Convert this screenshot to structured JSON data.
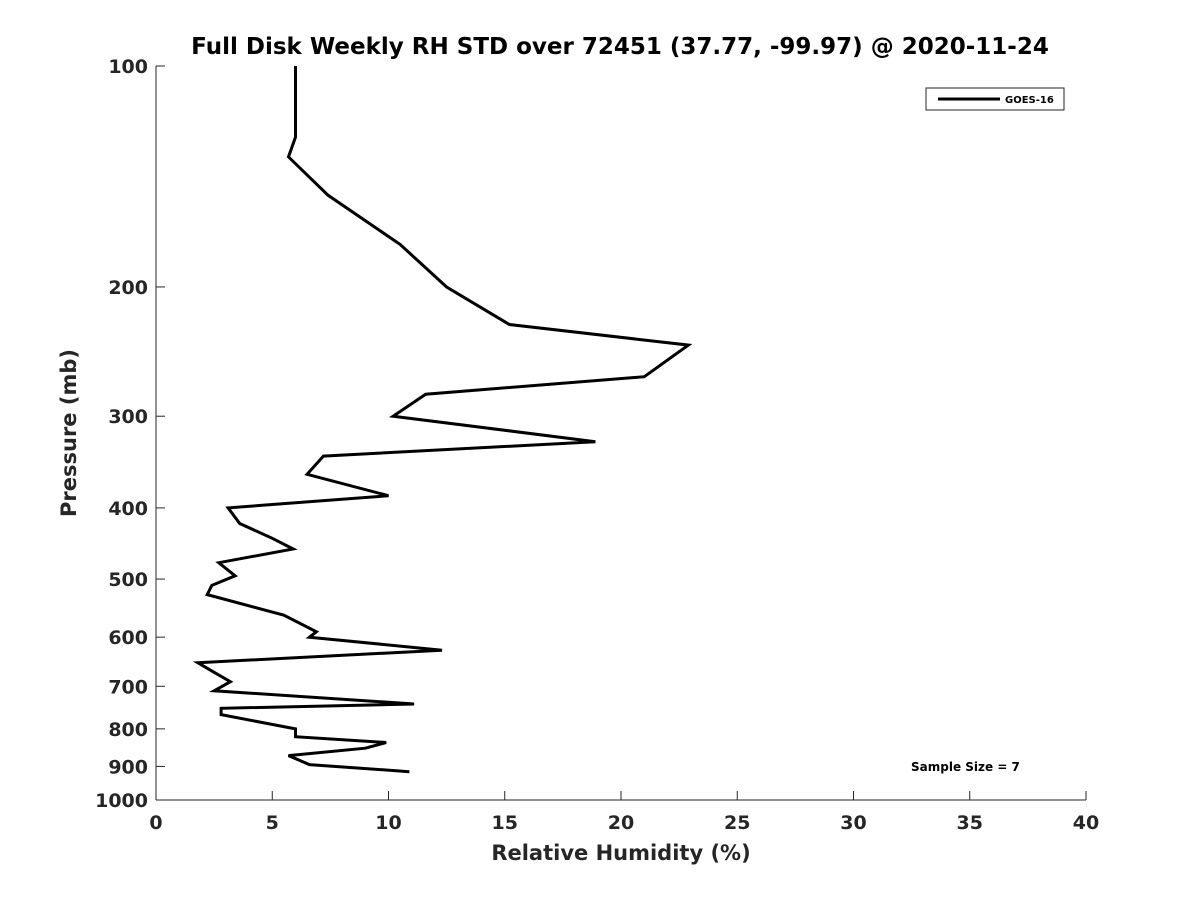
{
  "chart_data": {
    "type": "line",
    "title": "Full Disk Weekly RH STD over 72451 (37.77, -99.97) @ 2020-11-24",
    "xlabel": "Relative Humidity (%)",
    "ylabel": "Pressure (mb)",
    "xlim": [
      0,
      40
    ],
    "ylim": [
      100,
      1000
    ],
    "yscale": "log",
    "ydirection": "reverse",
    "xticks": [
      0,
      5,
      10,
      15,
      20,
      25,
      30,
      35,
      40
    ],
    "yticks": [
      100,
      200,
      300,
      400,
      500,
      600,
      700,
      800,
      900,
      1000
    ],
    "grid": false,
    "legend": {
      "position": "top-right",
      "entries": [
        "GOES-16"
      ]
    },
    "annotation": "Sample Size = 7",
    "series": [
      {
        "name": "GOES-16",
        "color": "#000000",
        "x": [
          6.0,
          6.0,
          5.7,
          7.4,
          10.5,
          12.5,
          15.2,
          22.9,
          21.0,
          11.6,
          10.2,
          18.9,
          7.2,
          6.5,
          10.0,
          3.1,
          3.6,
          5.0,
          5.9,
          2.7,
          3.4,
          2.4,
          2.2,
          5.5,
          6.9,
          6.6,
          12.3,
          1.8,
          2.5,
          3.2,
          2.5,
          11.1,
          2.8,
          2.8,
          6.0,
          6.0,
          9.9,
          9.0,
          5.7,
          6.6,
          10.9
        ],
        "y": [
          100,
          125,
          133,
          150,
          175,
          200,
          225,
          240,
          265,
          280,
          300,
          325,
          340,
          360,
          385,
          400,
          420,
          440,
          455,
          475,
          495,
          510,
          525,
          560,
          590,
          600,
          625,
          650,
          670,
          690,
          710,
          740,
          750,
          765,
          800,
          820,
          835,
          850,
          870,
          895,
          915
        ]
      }
    ]
  }
}
